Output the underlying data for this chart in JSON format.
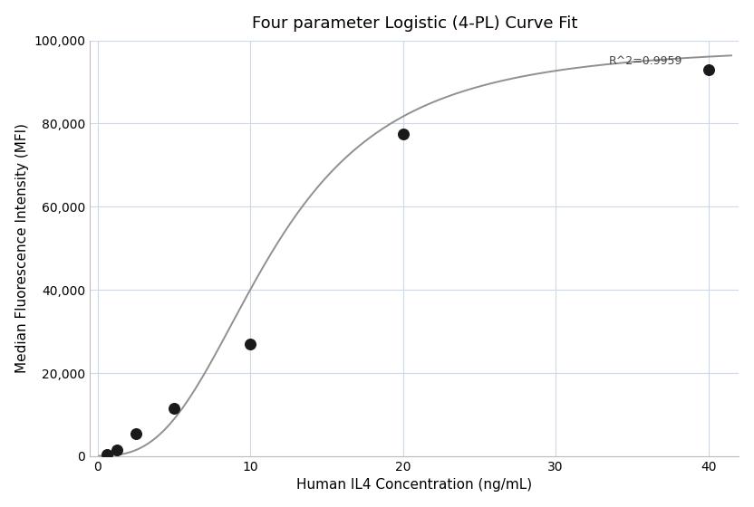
{
  "title": "Four parameter Logistic (4-PL) Curve Fit",
  "xlabel": "Human IL4 Concentration (ng/mL)",
  "ylabel": "Median Fluorescence Intensity (MFI)",
  "r_squared": "R^2=0.9959",
  "data_x": [
    0.625,
    1.25,
    2.5,
    5.0,
    10.0,
    20.0,
    40.0
  ],
  "data_y": [
    450,
    1400,
    5500,
    11500,
    27000,
    77500,
    93000
  ],
  "xlim": [
    -0.5,
    42
  ],
  "ylim": [
    0,
    100000
  ],
  "yticks": [
    0,
    20000,
    40000,
    60000,
    80000,
    100000
  ],
  "xticks": [
    0,
    10,
    20,
    30,
    40
  ],
  "curve_color": "#909090",
  "dot_color": "#1a1a1a",
  "bg_color": "#ffffff",
  "grid_color": "#ccd9e8",
  "4pl_A": 100,
  "4pl_D": 99000,
  "4pl_C": 11.5,
  "4pl_B": 2.8,
  "title_fontsize": 13,
  "label_fontsize": 11,
  "tick_fontsize": 10,
  "annotation_fontsize": 9,
  "dot_size": 70,
  "figwidth": 8.32,
  "figheight": 5.6,
  "dpi": 100
}
